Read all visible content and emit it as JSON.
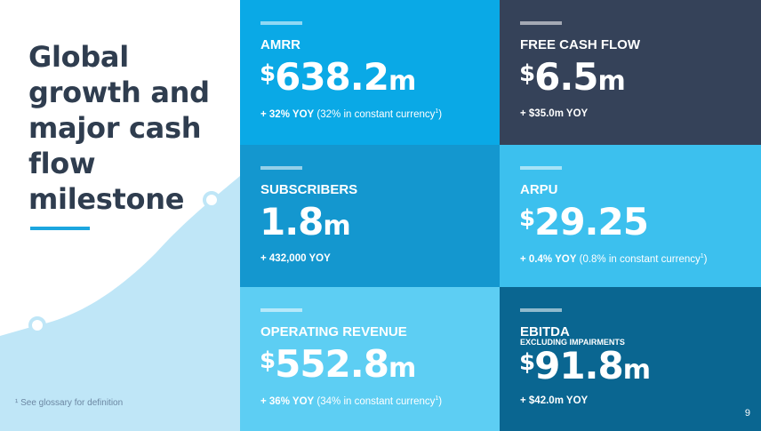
{
  "headline": {
    "lines": [
      "Global",
      "growth and",
      "major cash",
      "flow",
      "milestone"
    ]
  },
  "footnote": "¹ See glossary for definition",
  "page_number": "9",
  "colors": {
    "headline": "#2f3d4f",
    "accent_rule": "#1ca6df",
    "growth_curve": "#bfe6f7",
    "tile_amrr": "#0aa9e6",
    "tile_free_cash_flow": "#354259",
    "tile_subscribers": "#1497cf",
    "tile_arpu": "#3cc0ee",
    "tile_operating_revenue": "#5dcef3",
    "tile_ebitda": "#0a6691"
  },
  "tiles": {
    "amrr": {
      "label": "AMRR",
      "currency": "$",
      "number": "638.2",
      "unit": "m",
      "change_strong": "+ 32% YOY",
      "change_note": "(32% in constant currency",
      "change_note_sup": "1",
      "change_note_close": ")"
    },
    "free_cash_flow": {
      "label": "FREE CASH FLOW",
      "currency": "$",
      "number": "6.5",
      "unit": "m",
      "change_strong": "+ $35.0m YOY"
    },
    "subscribers": {
      "label": "SUBSCRIBERS",
      "number": "1.8",
      "unit": "m",
      "change_strong": "+ 432,000 YOY"
    },
    "arpu": {
      "label": "ARPU",
      "currency": "$",
      "number": "29.25",
      "change_strong": "+ 0.4% YOY",
      "change_note": "(0.8% in constant currency",
      "change_note_sup": "1",
      "change_note_close": ")"
    },
    "operating_revenue": {
      "label": "OPERATING REVENUE",
      "currency": "$",
      "number": "552.8",
      "unit": "m",
      "change_strong": "+ 36% YOY",
      "change_note": "(34% in constant currency",
      "change_note_sup": "1",
      "change_note_close": ")"
    },
    "ebitda": {
      "label": "EBITDA",
      "sublabel": "EXCLUDING IMPAIRMENTS",
      "currency": "$",
      "number": "91.8",
      "unit": "m",
      "change_strong": "+ $42.0m YOY"
    }
  }
}
